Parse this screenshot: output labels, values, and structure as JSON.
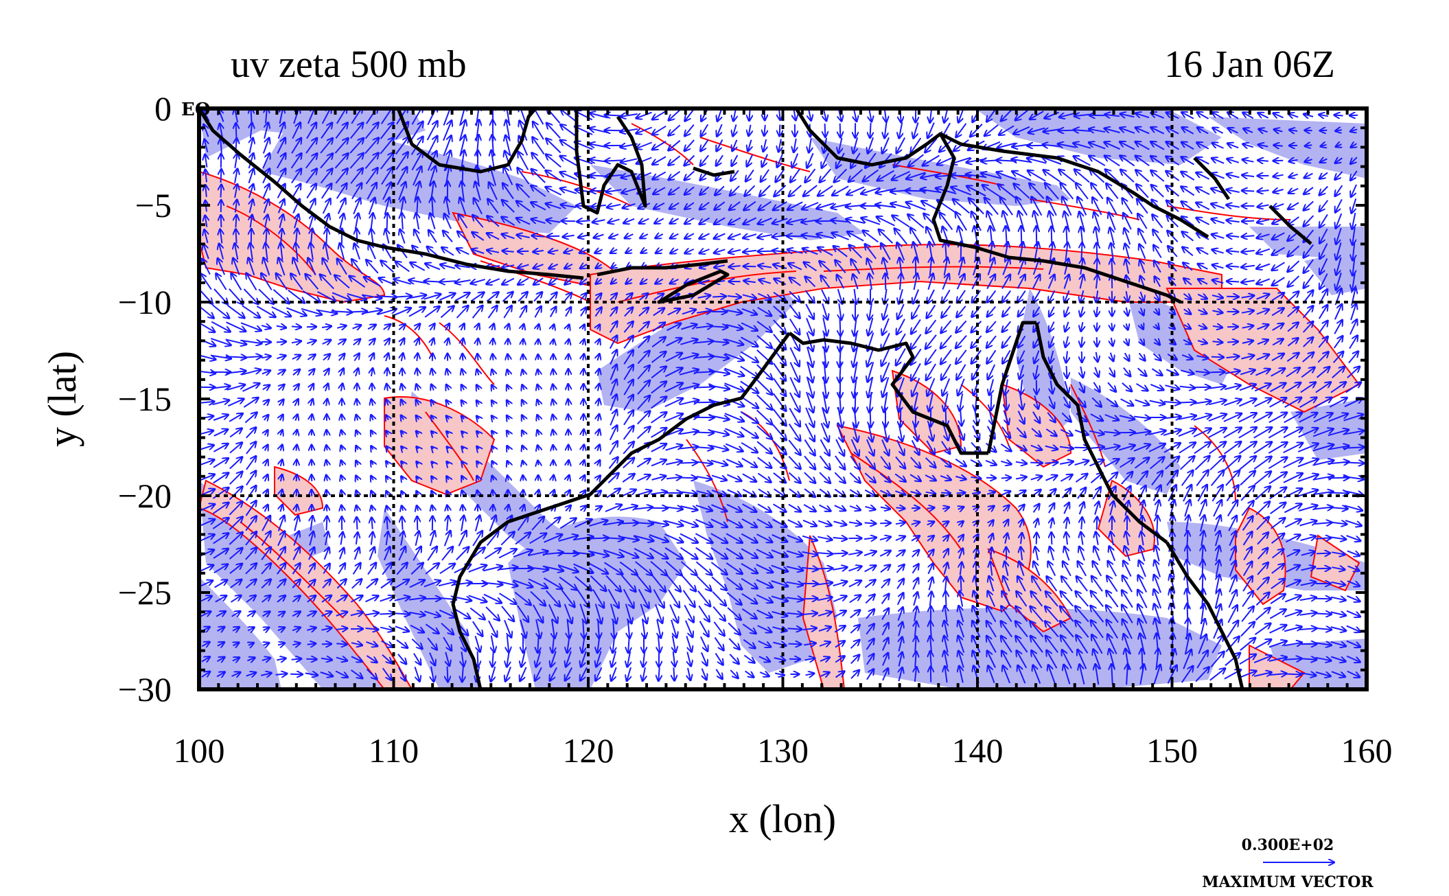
{
  "map": {
    "title_left": "uv zeta 500 mb",
    "title_right": "16 Jan 06Z",
    "x_axis_label": "x (lon)",
    "y_axis_label": "y (lat)",
    "equator_label": "EQ",
    "x_ticks": [
      100,
      110,
      120,
      130,
      140,
      150,
      160
    ],
    "y_ticks": [
      0,
      -5,
      -10,
      -15,
      -20,
      -25,
      -30
    ],
    "x_range": [
      100,
      160
    ],
    "y_range": [
      -30,
      0
    ],
    "gridlines": true,
    "legend": {
      "vector_magnitude": "0.300E+02",
      "vector_caption": "MAXIMUM VECTOR",
      "placement": "bottom-right"
    },
    "colors": {
      "coastline": "#000000",
      "wind_vectors": "#1a1aff",
      "positive_vorticity_contour": "#ff0000",
      "positive_vorticity_fill": "#f7c6c6",
      "negative_vorticity_fill": "#b3b3f2",
      "background": "#ffffff"
    }
  }
}
